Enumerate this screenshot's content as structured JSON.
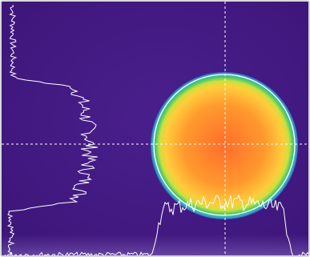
{
  "viewer": {
    "background_color": "#4a1f8c",
    "background_color_edge": "#3c1578",
    "trace_color": "#ffffff",
    "crosshair_color": "#ffffff",
    "reference_circle_color": "#ffffff",
    "colormap": [
      "#2f6fd8",
      "#26b5c8",
      "#3ad06a",
      "#c9e83a",
      "#ffd23a",
      "#ff9a2a",
      "#ff6a28"
    ],
    "show_crosshair": true,
    "show_reference_circle": true,
    "show_horizontal_profile": true,
    "show_vertical_profile": true,
    "show_sensor_noise_band": true
  }
}
